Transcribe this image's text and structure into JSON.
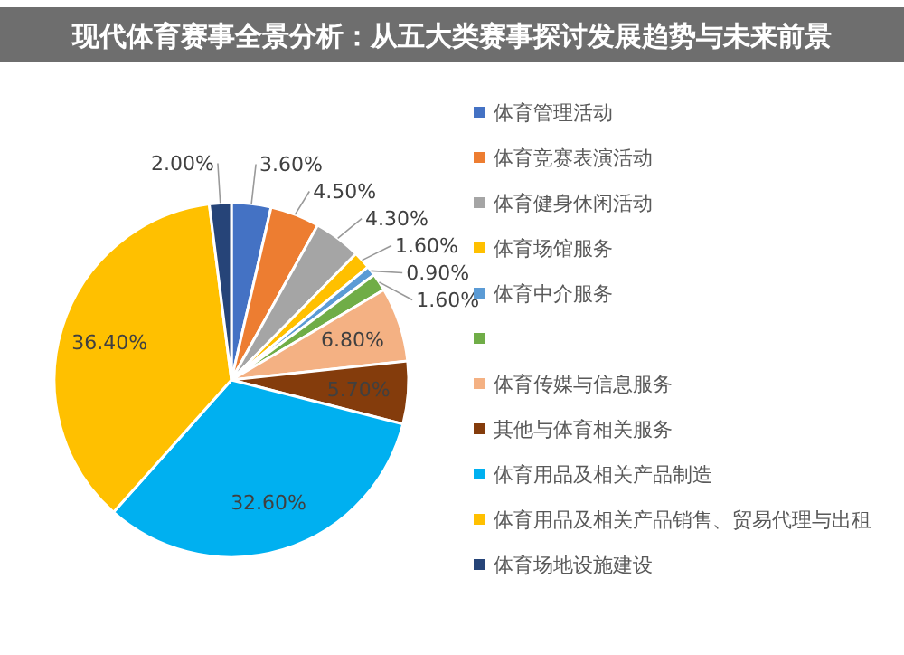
{
  "chart_data": {
    "type": "pie",
    "title": "现代体育赛事全景分析：从五大类赛事探讨发展趋势与未来前景",
    "categories": [
      "体育管理活动",
      "体育竞赛表演活动",
      "体育健身休闲活动",
      "体育场馆服务",
      "体育中介服务",
      null,
      "体育传媒与信息服务",
      "其他与体育相关服务",
      "体育用品及相关产品制造",
      "体育用品及相关产品销售、贸易代理与出租",
      "体育场地设施建设"
    ],
    "values": [
      3.6,
      4.5,
      4.3,
      1.6,
      0.9,
      1.6,
      6.8,
      5.7,
      32.6,
      36.4,
      2.0
    ],
    "value_labels": [
      "3.60%",
      "4.50%",
      "4.30%",
      "1.60%",
      "0.90%",
      "1.60%",
      "6.80%",
      "5.70%",
      "32.60%",
      "36.40%",
      "2.00%"
    ],
    "colors": [
      "#4472c4",
      "#ed7d31",
      "#a5a5a5",
      "#ffc000",
      "#5b9bd5",
      "#70ad47",
      "#f4b183",
      "#843c0c",
      "#00b0f0",
      "#ffc000",
      "#264478"
    ],
    "legend": "right"
  }
}
